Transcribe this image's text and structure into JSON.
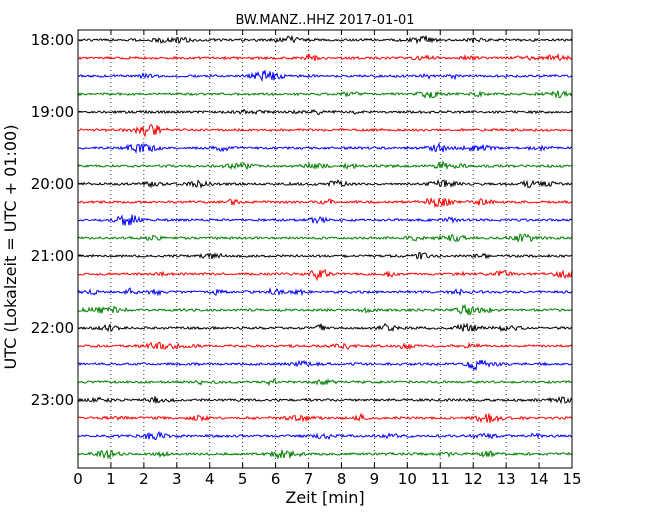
{
  "chart_data": {
    "type": "line",
    "subtype": "seismogram-dayplot",
    "title": "BW.MANZ..HHZ 2017-01-01",
    "xlabel": "Zeit  [min]",
    "ylabel": "UTC (Lokalzeit = UTC + 01:00)",
    "xlim": [
      0,
      15
    ],
    "x_ticks": [
      0,
      1,
      2,
      3,
      4,
      5,
      6,
      7,
      8,
      9,
      10,
      11,
      12,
      13,
      14,
      15
    ],
    "x_tick_labels": [
      "0",
      "1",
      "2",
      "3",
      "4",
      "5",
      "6",
      "7",
      "8",
      "9",
      "10",
      "11",
      "12",
      "13",
      "14",
      "15"
    ],
    "vertical_grid": "dotted",
    "trace_interval_minutes": 15,
    "hour_labels": [
      "18:00",
      "19:00",
      "20:00",
      "21:00",
      "22:00",
      "23:00"
    ],
    "trace_colors": [
      "#000000",
      "#ff0000",
      "#0000ff",
      "#008000"
    ],
    "series": [
      {
        "start": "18:00",
        "color": "#000000"
      },
      {
        "start": "18:15",
        "color": "#ff0000"
      },
      {
        "start": "18:30",
        "color": "#0000ff"
      },
      {
        "start": "18:45",
        "color": "#008000"
      },
      {
        "start": "19:00",
        "color": "#000000"
      },
      {
        "start": "19:15",
        "color": "#ff0000"
      },
      {
        "start": "19:30",
        "color": "#0000ff"
      },
      {
        "start": "19:45",
        "color": "#008000"
      },
      {
        "start": "20:00",
        "color": "#000000"
      },
      {
        "start": "20:15",
        "color": "#ff0000"
      },
      {
        "start": "20:30",
        "color": "#0000ff"
      },
      {
        "start": "20:45",
        "color": "#008000"
      },
      {
        "start": "21:00",
        "color": "#000000"
      },
      {
        "start": "21:15",
        "color": "#ff0000"
      },
      {
        "start": "21:30",
        "color": "#0000ff"
      },
      {
        "start": "21:45",
        "color": "#008000"
      },
      {
        "start": "22:00",
        "color": "#000000"
      },
      {
        "start": "22:15",
        "color": "#ff0000"
      },
      {
        "start": "22:30",
        "color": "#0000ff"
      },
      {
        "start": "22:45",
        "color": "#008000"
      },
      {
        "start": "23:00",
        "color": "#000000"
      },
      {
        "start": "23:15",
        "color": "#ff0000"
      },
      {
        "start": "23:30",
        "color": "#0000ff"
      },
      {
        "start": "23:45",
        "color": "#008000"
      }
    ]
  }
}
